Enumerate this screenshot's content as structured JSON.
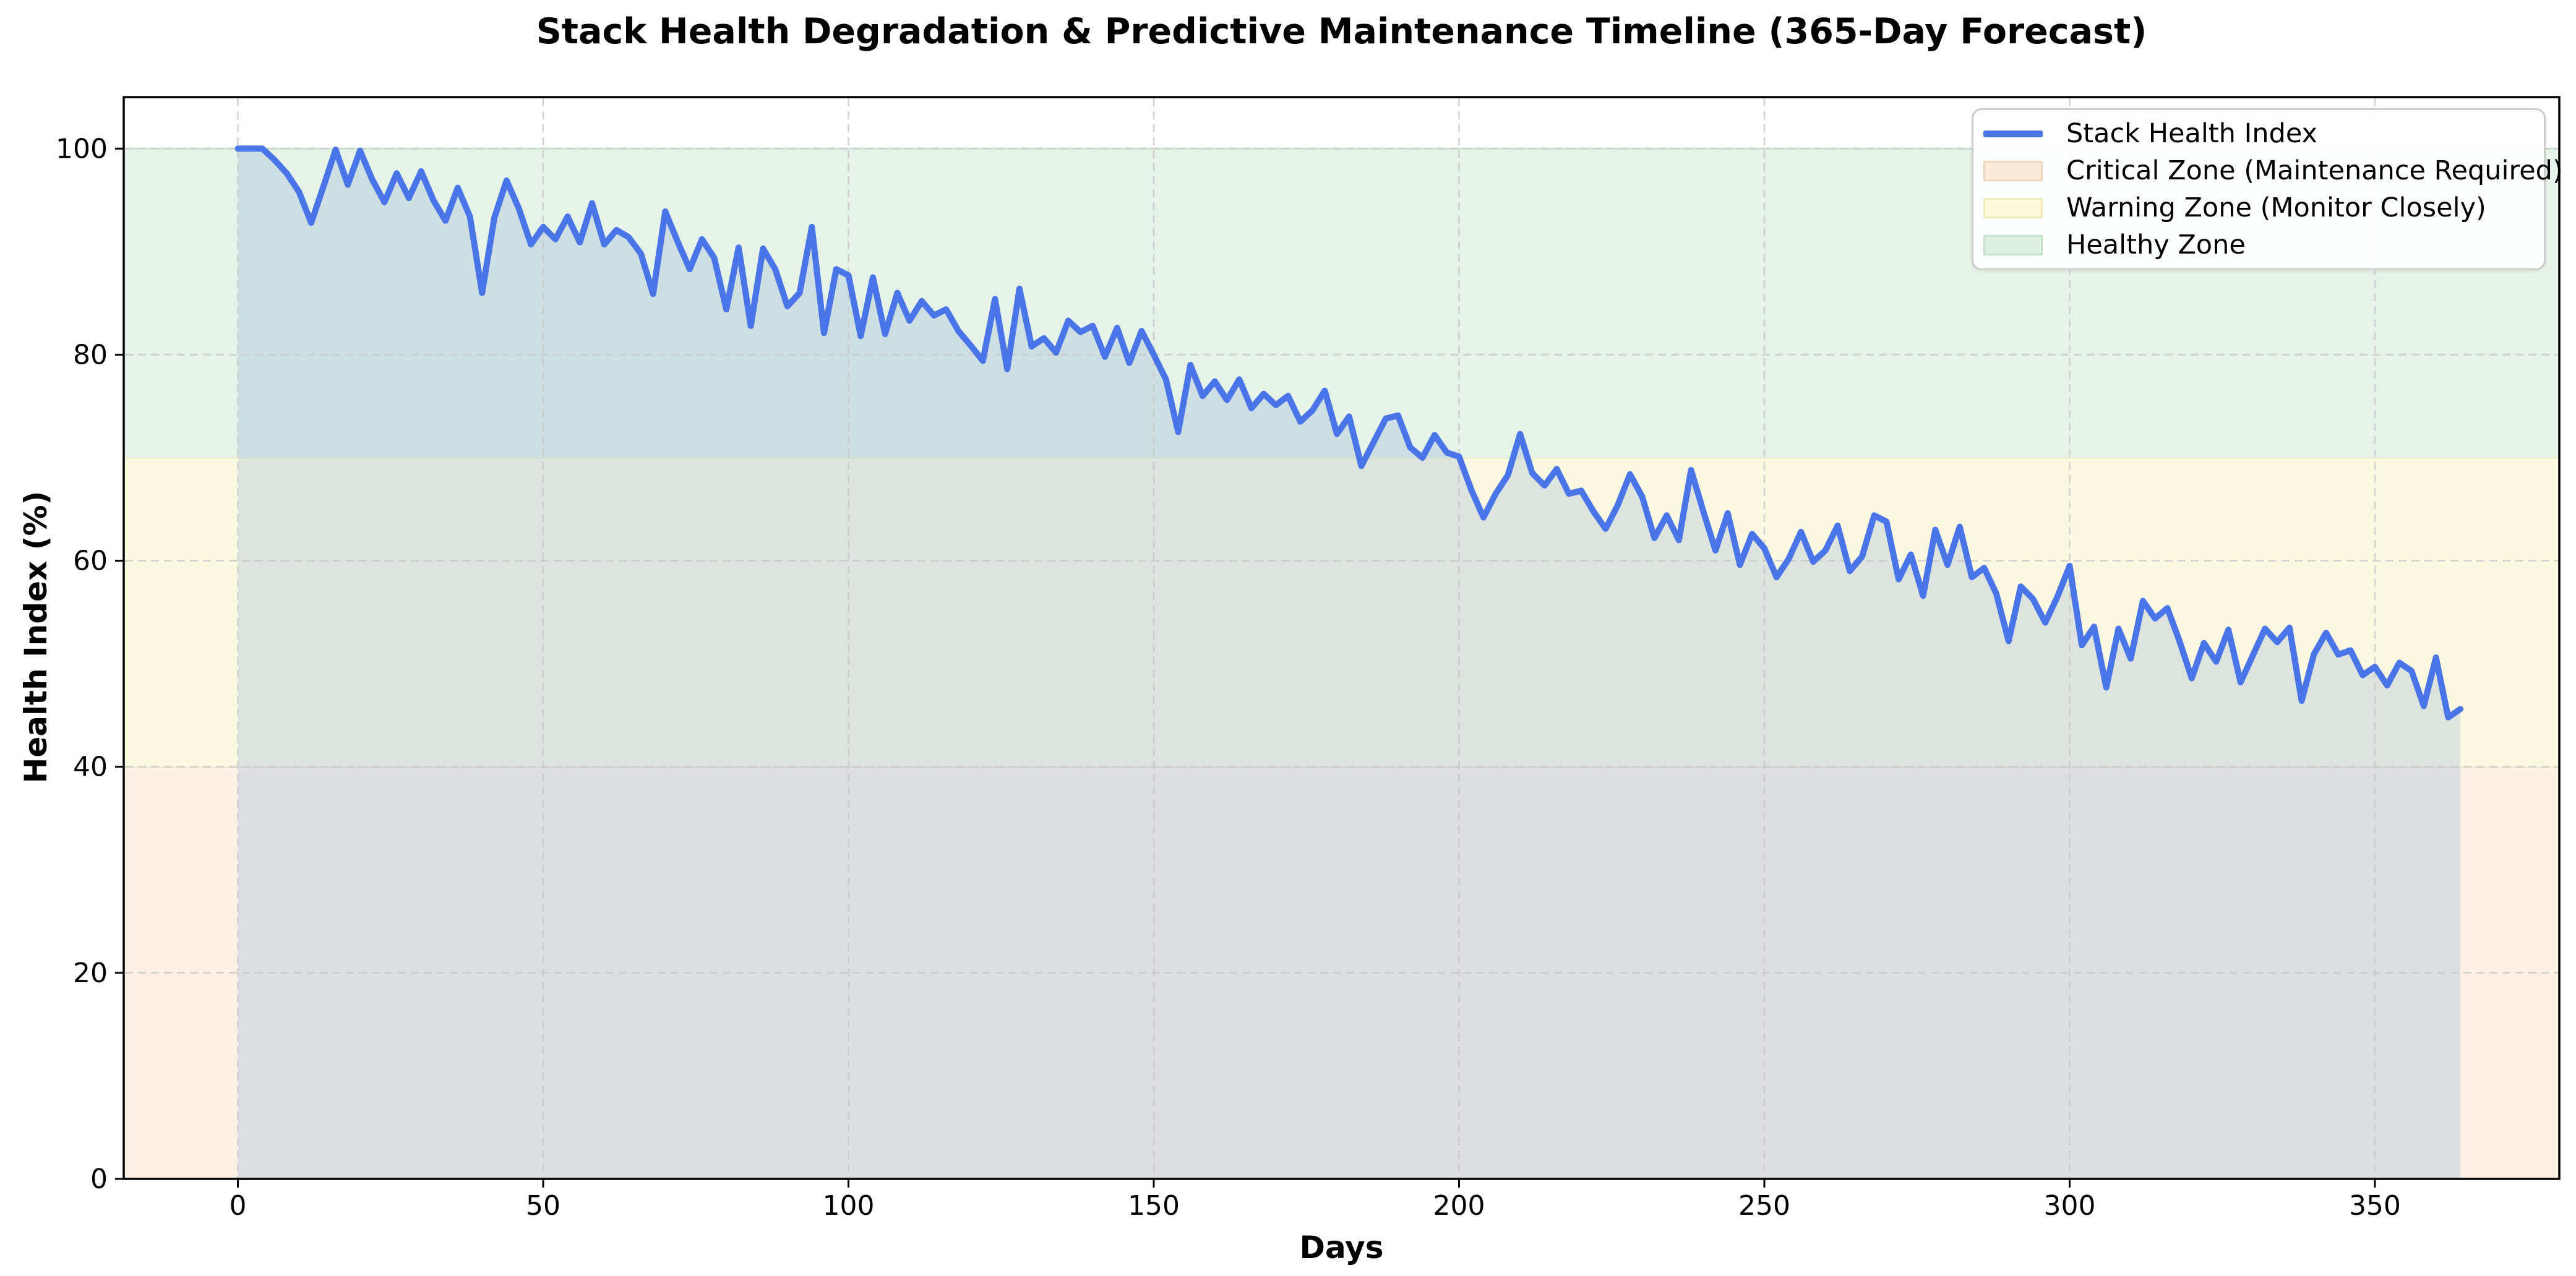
{
  "chart_data": {
    "type": "line",
    "title": "Stack Health Degradation & Predictive Maintenance Timeline (365-Day Forecast)",
    "xlabel": "Days",
    "ylabel": "Health Index (%)",
    "xlim": [
      -18.7,
      380.2
    ],
    "ylim": [
      0,
      105
    ],
    "xticks": [
      0,
      50,
      100,
      150,
      200,
      250,
      300,
      350
    ],
    "yticks": [
      0,
      20,
      40,
      60,
      80,
      100
    ],
    "grid": true,
    "grid_style": "dashed",
    "grid_color": "#c9c9c9",
    "legend_position": "upper right",
    "series": [
      {
        "name": "Stack Health Index",
        "color": "#4a75e8",
        "fill_color": "rgba(150,180,215,0.30)",
        "line_width": 10,
        "x_start": 0,
        "x_step": 2,
        "x_end": 364,
        "y": [
          100,
          100,
          100,
          98.9,
          97.6,
          95.8,
          92.8,
          96.3,
          99.9,
          96.5,
          99.8,
          97.0,
          94.8,
          97.6,
          95.2,
          97.8,
          95.0,
          93.0,
          96.2,
          93.4,
          86.0,
          93.3,
          96.9,
          94.2,
          90.7,
          92.4,
          91.2,
          93.4,
          90.9,
          94.7,
          90.7,
          92.1,
          91.4,
          89.8,
          85.9,
          93.9,
          91.0,
          88.3,
          91.2,
          89.4,
          84.4,
          90.4,
          82.8,
          90.3,
          88.3,
          84.7,
          86.0,
          92.4,
          82.1,
          88.3,
          87.7,
          81.8,
          87.5,
          82.0,
          86.0,
          83.3,
          85.2,
          83.8,
          84.4,
          82.3,
          80.9,
          79.4,
          85.4,
          78.6,
          86.4,
          80.8,
          81.6,
          80.2,
          83.3,
          82.2,
          82.8,
          79.8,
          82.6,
          79.2,
          82.3,
          80.0,
          77.6,
          72.5,
          79.0,
          76.0,
          77.4,
          75.6,
          77.6,
          74.8,
          76.2,
          75.1,
          76.0,
          73.5,
          74.6,
          76.5,
          72.3,
          74.0,
          69.2,
          71.5,
          73.8,
          74.1,
          71.0,
          70.0,
          72.2,
          70.5,
          70.1,
          66.9,
          64.2,
          66.5,
          68.3,
          72.3,
          68.5,
          67.3,
          68.9,
          66.5,
          66.8,
          64.8,
          63.1,
          65.4,
          68.4,
          66.2,
          62.2,
          64.4,
          62.0,
          68.8,
          64.8,
          61.0,
          64.6,
          59.6,
          62.6,
          61.2,
          58.4,
          60.2,
          62.8,
          59.9,
          61.0,
          63.4,
          59.0,
          60.4,
          64.4,
          63.8,
          58.2,
          60.6,
          56.6,
          63.0,
          59.6,
          63.3,
          58.4,
          59.3,
          56.8,
          52.2,
          57.5,
          56.3,
          54.0,
          56.5,
          59.5,
          51.8,
          53.6,
          47.7,
          53.4,
          50.5,
          56.1,
          54.4,
          55.4,
          52.2,
          48.6,
          52.0,
          50.2,
          53.3,
          48.2,
          50.8,
          53.4,
          52.1,
          53.5,
          46.4,
          50.9,
          53.0,
          50.9,
          51.3,
          48.9,
          49.7,
          47.9,
          50.1,
          49.3,
          45.9,
          50.6,
          44.8,
          45.6
        ]
      }
    ],
    "zones": [
      {
        "label": "Critical Zone (Maintenance Required)",
        "ymin": 0,
        "ymax": 40,
        "fill": "#fdf1e6",
        "edge": "#f3ddc2"
      },
      {
        "label": "Warning Zone (Monitor Closely)",
        "ymin": 40,
        "ymax": 70,
        "fill": "#fcf9e3",
        "edge": "#efe9c0"
      },
      {
        "label": "Healthy Zone",
        "ymin": 70,
        "ymax": 100,
        "fill": "#e6f3e9",
        "edge": "#c8e5cf"
      }
    ],
    "legend": {
      "items": [
        {
          "label": "Stack Health Index",
          "swatch": "line",
          "fill": "#4a75e8",
          "edge": "#4a75e8"
        },
        {
          "label": "Critical Zone (Maintenance Required)",
          "swatch": "patch",
          "fill": "#fbe9d9",
          "edge": "#f0d6bd"
        },
        {
          "label": "Warning Zone (Monitor Closely)",
          "swatch": "patch",
          "fill": "#fcf8db",
          "edge": "#eeeab9"
        },
        {
          "label": "Healthy Zone",
          "swatch": "patch",
          "fill": "#def0e3",
          "edge": "#c2e2cd"
        }
      ]
    }
  }
}
